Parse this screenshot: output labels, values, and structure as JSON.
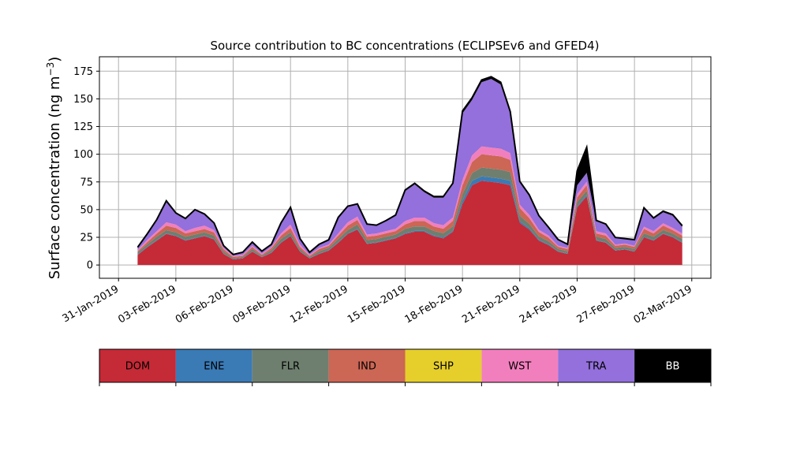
{
  "chart_data": {
    "type": "area",
    "stacked": true,
    "title": "Source contribution to BC concentrations (ECLIPSEv6 and GFED4)",
    "ylabel": "Surface concentration (ng m",
    "ylabel_exponent": "−3",
    "ylabel_close": ")",
    "xlabel": "",
    "ylim": [
      -12,
      188
    ],
    "yticks": [
      0,
      25,
      50,
      75,
      100,
      125,
      150,
      175
    ],
    "x_start": "2019-01-30T00:00",
    "x_end": "2019-03-03T00:00",
    "grid": true,
    "xtick_labels": [
      "31-Jan-2019",
      "03-Feb-2019",
      "06-Feb-2019",
      "09-Feb-2019",
      "12-Feb-2019",
      "15-Feb-2019",
      "18-Feb-2019",
      "21-Feb-2019",
      "24-Feb-2019",
      "27-Feb-2019",
      "02-Mar-2019"
    ],
    "xtick_dates": [
      "2019-01-31",
      "2019-02-03",
      "2019-02-06",
      "2019-02-09",
      "2019-02-12",
      "2019-02-15",
      "2019-02-18",
      "2019-02-21",
      "2019-02-24",
      "2019-02-27",
      "2019-03-02"
    ],
    "x": [
      "2019-02-01",
      "2019-02-01 12:00",
      "2019-02-02",
      "2019-02-02 12:00",
      "2019-02-03",
      "2019-02-03 12:00",
      "2019-02-04",
      "2019-02-04 12:00",
      "2019-02-05",
      "2019-02-05 12:00",
      "2019-02-06",
      "2019-02-06 12:00",
      "2019-02-07",
      "2019-02-07 12:00",
      "2019-02-08",
      "2019-02-08 12:00",
      "2019-02-09",
      "2019-02-09 12:00",
      "2019-02-10",
      "2019-02-10 12:00",
      "2019-02-11",
      "2019-02-11 12:00",
      "2019-02-12",
      "2019-02-12 12:00",
      "2019-02-13",
      "2019-02-13 12:00",
      "2019-02-14",
      "2019-02-14 12:00",
      "2019-02-15",
      "2019-02-15 12:00",
      "2019-02-16",
      "2019-02-16 12:00",
      "2019-02-17",
      "2019-02-17 12:00",
      "2019-02-18",
      "2019-02-18 12:00",
      "2019-02-19",
      "2019-02-19 12:00",
      "2019-02-20",
      "2019-02-20 12:00",
      "2019-02-21",
      "2019-02-21 12:00",
      "2019-02-22",
      "2019-02-22 12:00",
      "2019-02-23",
      "2019-02-23 12:00",
      "2019-02-24",
      "2019-02-24 12:00",
      "2019-02-25",
      "2019-02-25 12:00",
      "2019-02-26",
      "2019-02-26 12:00",
      "2019-02-27",
      "2019-02-27 12:00",
      "2019-02-28",
      "2019-02-28 12:00",
      "2019-03-01",
      "2019-03-01 12:00"
    ],
    "series": [
      {
        "name": "DOM",
        "color": "#c52a37",
        "values": [
          9,
          16,
          22,
          28,
          26,
          22,
          24,
          26,
          23,
          10,
          5,
          6,
          12,
          7,
          11,
          20,
          26,
          12,
          6,
          10,
          13,
          20,
          28,
          32,
          19,
          20,
          22,
          24,
          28,
          30,
          30,
          26,
          24,
          30,
          55,
          72,
          76,
          75,
          74,
          72,
          38,
          32,
          22,
          18,
          12,
          10,
          52,
          62,
          22,
          20,
          13,
          14,
          12,
          25,
          22,
          28,
          25,
          20
        ]
      },
      {
        "name": "ENE",
        "color": "#3a7ab5",
        "values": [
          0.5,
          0.5,
          0.5,
          0.5,
          0.5,
          0.5,
          0.5,
          0.5,
          0.5,
          0.3,
          0.3,
          0.3,
          0.4,
          0.3,
          0.4,
          0.5,
          0.5,
          0.4,
          0.3,
          0.4,
          0.4,
          0.5,
          0.6,
          0.7,
          0.5,
          0.5,
          0.6,
          0.6,
          0.7,
          0.8,
          0.8,
          0.8,
          0.8,
          0.9,
          3,
          4,
          4,
          4,
          4,
          4,
          1.5,
          1.2,
          0.8,
          0.7,
          0.5,
          0.4,
          1,
          1.2,
          0.5,
          0.5,
          0.4,
          0.4,
          0.4,
          0.6,
          0.5,
          0.6,
          0.5,
          0.5
        ]
      },
      {
        "name": "FLR",
        "color": "#6f7f6f",
        "values": [
          2,
          2,
          3,
          3,
          3,
          3,
          3,
          3,
          3,
          2,
          1,
          1,
          2,
          1,
          2,
          3,
          3,
          2,
          1,
          2,
          2,
          3,
          3,
          4,
          3,
          3,
          3,
          3,
          4,
          4,
          4,
          4,
          4,
          4,
          6,
          7,
          8,
          8,
          8,
          8,
          5,
          4,
          3,
          3,
          2,
          2,
          4,
          4,
          3,
          3,
          2,
          2,
          2,
          3,
          3,
          3,
          3,
          3
        ]
      },
      {
        "name": "IND",
        "color": "#cc6655",
        "values": [
          1,
          2,
          3,
          4,
          4,
          3,
          3,
          3,
          3,
          2,
          1,
          1,
          2,
          1,
          2,
          3,
          4,
          2,
          1,
          2,
          2,
          3,
          4,
          4,
          3,
          3,
          3,
          3,
          4,
          5,
          5,
          4,
          4,
          5,
          8,
          10,
          12,
          12,
          12,
          11,
          7,
          5,
          4,
          3,
          2,
          2,
          4,
          5,
          3,
          3,
          2,
          2,
          2,
          4,
          3,
          4,
          3,
          3
        ]
      },
      {
        "name": "SHP",
        "color": "#e6cf2b",
        "values": [
          0,
          0,
          0,
          0,
          0,
          0,
          0,
          0,
          0,
          0,
          0,
          0,
          0,
          0,
          0,
          0,
          0,
          0,
          0,
          0,
          0,
          0,
          0,
          0,
          0,
          0,
          0,
          0,
          0,
          0,
          0,
          0,
          0,
          0,
          0,
          0,
          0,
          0,
          0,
          0,
          0,
          0,
          0,
          0,
          0,
          0,
          0,
          0,
          0,
          0,
          0,
          0,
          0,
          0,
          0,
          0,
          0,
          0
        ]
      },
      {
        "name": "WST",
        "color": "#f27fbd",
        "values": [
          1,
          2,
          2,
          3,
          3,
          2,
          3,
          3,
          2,
          1,
          1,
          1,
          1,
          1,
          1,
          2,
          3,
          2,
          1,
          1,
          1,
          2,
          3,
          3,
          2,
          2,
          2,
          2,
          3,
          3,
          3,
          3,
          3,
          3,
          5,
          6,
          7,
          7,
          7,
          6,
          3,
          3,
          2,
          2,
          1,
          1,
          3,
          3,
          2,
          2,
          1,
          1,
          1,
          2,
          2,
          2,
          2,
          2
        ]
      },
      {
        "name": "TRA",
        "color": "#9370db",
        "values": [
          2,
          5,
          10,
          19,
          10,
          11,
          16,
          10,
          6,
          2,
          1,
          2,
          3,
          2,
          2,
          9,
          15,
          5,
          2,
          3,
          4,
          14,
          14,
          11,
          9,
          7,
          9,
          12,
          27,
          30,
          23,
          23,
          25,
          30,
          60,
          50,
          58,
          62,
          58,
          36,
          20,
          17,
          12,
          7,
          5,
          3,
          8,
          8,
          9,
          8,
          6,
          4,
          5,
          16,
          11,
          10,
          11,
          6
        ]
      },
      {
        "name": "BB",
        "color": "#000000",
        "values": [
          0.5,
          0.5,
          0.5,
          0.5,
          0.5,
          0.5,
          0.5,
          0.5,
          0.5,
          0.2,
          0.2,
          0.2,
          0.3,
          0.2,
          0.3,
          0.5,
          0.5,
          0.3,
          0.2,
          0.3,
          0.3,
          0.5,
          0.5,
          0.5,
          0.5,
          0.5,
          0.5,
          0.5,
          1,
          1,
          1,
          1,
          1,
          1,
          2,
          2,
          2,
          2,
          2,
          1.5,
          1,
          1,
          0.8,
          0.5,
          0.5,
          0.3,
          13,
          23,
          0.8,
          0.5,
          0.5,
          0.5,
          0.5,
          1,
          1,
          1,
          1,
          1
        ]
      }
    ],
    "legend": {
      "position": "below",
      "style": "color-boxes"
    }
  }
}
